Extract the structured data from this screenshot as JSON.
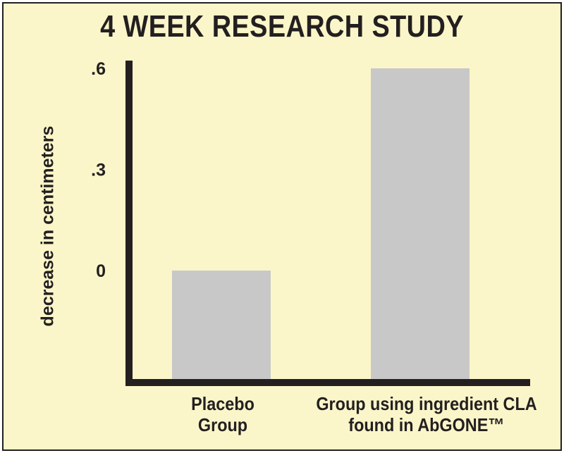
{
  "chart_data": {
    "type": "bar",
    "title": "4 WEEK RESEARCH STUDY",
    "ylabel": "decrease in centimeters",
    "xlabel": "",
    "categories": [
      "Placebo Group",
      "Group using ingredient CLA found in AbGONE™"
    ],
    "category_lines": [
      [
        "Placebo",
        "Group"
      ],
      [
        "Group using ingredient CLA",
        "found in AbGONE™"
      ]
    ],
    "values": [
      -0.02,
      0.6
    ],
    "yticks": [
      0,
      0.3,
      0.6
    ],
    "ytick_labels": [
      "0",
      ".3",
      ".6"
    ],
    "ylim": [
      -0.35,
      0.62
    ],
    "grid": false,
    "colors": {
      "background": "#fbf6c9",
      "bar": "#c8c8c8",
      "axis": "#231f20",
      "text": "#231f20"
    }
  }
}
